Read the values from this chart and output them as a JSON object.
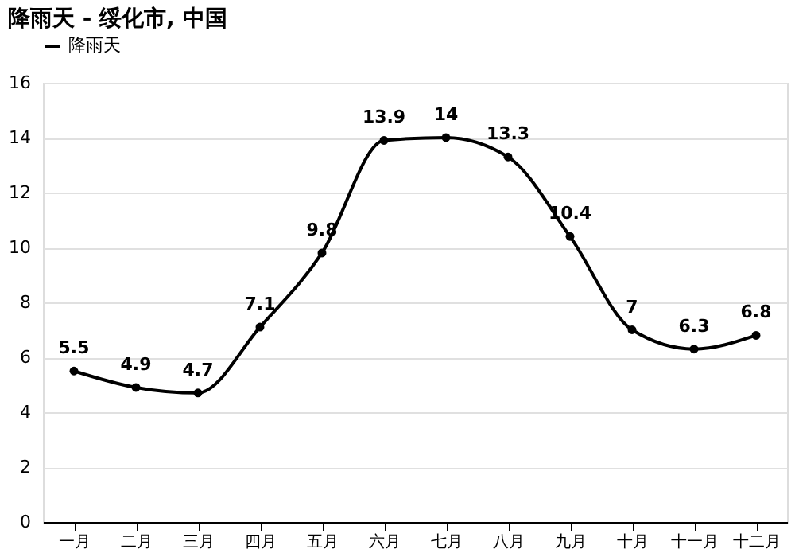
{
  "chart_data": {
    "type": "line",
    "title": "降雨天 - 绥化市, 中国",
    "categories": [
      "一月",
      "二月",
      "三月",
      "四月",
      "五月",
      "六月",
      "七月",
      "八月",
      "九月",
      "十月",
      "十一月",
      "十二月"
    ],
    "series": [
      {
        "name": "降雨天",
        "color": "#000000",
        "values": [
          5.5,
          4.9,
          4.7,
          7.1,
          9.8,
          13.9,
          14,
          13.3,
          10.4,
          7,
          6.3,
          6.8
        ]
      }
    ],
    "ylim": [
      0,
      16
    ],
    "yticks": [
      0,
      2,
      4,
      6,
      8,
      10,
      12,
      14,
      16
    ],
    "grid": "y",
    "legend": "top left",
    "marker": "circle",
    "line_style": "solid",
    "data_labels": true
  }
}
